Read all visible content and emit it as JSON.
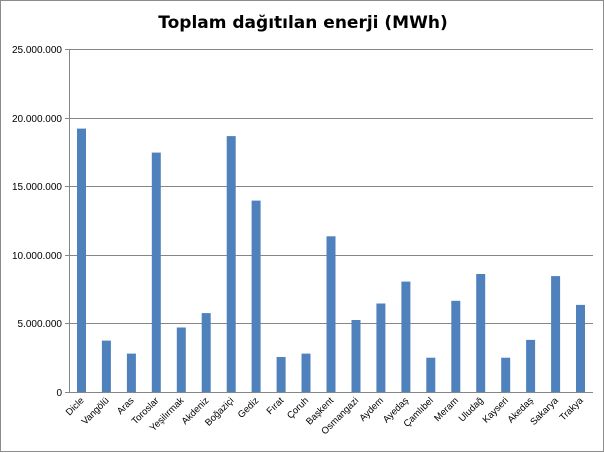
{
  "chart_data": {
    "type": "bar",
    "title": "Toplam dağıtılan enerji (MWh)",
    "xlabel": "",
    "ylabel": "",
    "categories": [
      "Dicle",
      "Vangölü",
      "Aras",
      "Toroslar",
      "Yeşilırmak",
      "Akdeniz",
      "Boğaziçi",
      "Gediz",
      "Fırat",
      "Çoruh",
      "Başkent",
      "Osmangazi",
      "Aydem",
      "Ayedaş",
      "Çamlıbel",
      "Meram",
      "Uludağ",
      "Kayseri",
      "Akedaş",
      "Sakarya",
      "Trakya"
    ],
    "values": [
      19200000,
      3750000,
      2800000,
      17450000,
      4700000,
      5750000,
      18650000,
      13950000,
      2550000,
      2800000,
      11350000,
      5250000,
      6450000,
      8050000,
      2500000,
      6650000,
      8600000,
      2500000,
      3800000,
      8450000,
      6350000
    ],
    "ylim": [
      0,
      25000000
    ],
    "yticks": [
      "0",
      "5.000.000",
      "10.000.000",
      "15.000.000",
      "20.000.000",
      "25.000.000"
    ],
    "ytick_values": [
      0,
      5000000,
      10000000,
      15000000,
      20000000,
      25000000
    ],
    "grid": true,
    "legend": "none",
    "bar_color": "#4f81bd",
    "grid_color": "#868686"
  }
}
